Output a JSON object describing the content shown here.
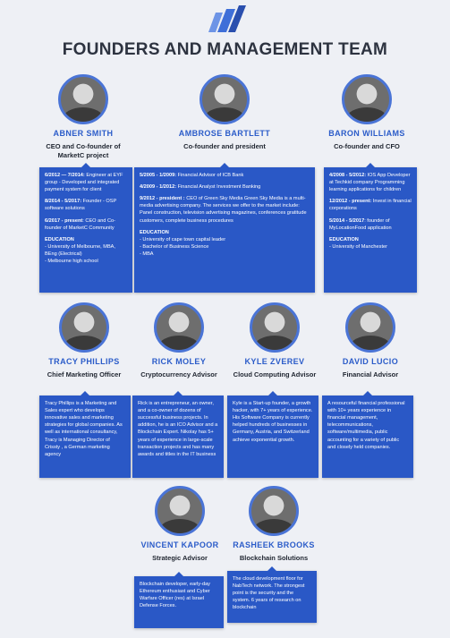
{
  "header": {
    "title": "FOUNDERS AND MANAGEMENT TEAM"
  },
  "founders": [
    {
      "name": "ABNER SMITH",
      "role": "CEO and Co-founder of MarketC project",
      "entries": [
        {
          "period": "6/2012 — 7/2014:",
          "text": " Engineer at EYF group - Developed and integrated payment system for client"
        },
        {
          "period": "8/2014 - 5/2017:",
          "text": " Founder - OSP software solutions"
        },
        {
          "period": "6/2017 - present",
          "text": ": CEO and Co-founder of MarketC Community"
        }
      ],
      "education_title": "EDUCATION",
      "education": [
        "- University of Melbourne, MBA, BEng (Electrical)",
        "- Melbourne high school"
      ]
    },
    {
      "name": "AMBROSE BARTLETT",
      "role": "Co-founder and president",
      "entries": [
        {
          "period": "5/2005 - 1/2009:",
          "text": " Financial Advisor of ICB Bank"
        },
        {
          "period": "4/2009 - 1/2012:",
          "text": " Financial Analyst Investment Banking"
        },
        {
          "period": "9/2012 - president :",
          "text": " CEO of Green Sky Media Green Sky Media is a multi-media advertising company. The services we offer to the market include: Panel construction, television advertising magazines, conferences gratitude customers, complete business procedures"
        }
      ],
      "education_title": "EDUCATION",
      "education": [
        "- University of cape town capital leader",
        "- Bachelor of Business Science",
        "- MBA"
      ]
    },
    {
      "name": "BARON WILLIAMS",
      "role": "Co-founder and CFO",
      "entries": [
        {
          "period": "4/2008 - 5/2012:",
          "text": " IOS App Developer at Techkid company Programming learning applications for children"
        },
        {
          "period": "12/2012 - present:",
          "text": " Invest in financial corporations"
        },
        {
          "period": "5/2014 - 5/2017",
          "text": ": founder of MyLocationFood application"
        }
      ],
      "education_title": "EDUCATION",
      "education": [
        "- University of Manchester"
      ]
    }
  ],
  "advisors": [
    {
      "name": "TRACY PHILLIPS",
      "role": "Chief Marketing Officer",
      "bio": "Tracy Phillips  is a Marketing and Sales  expert who develops innovative sales and  marketing strategies for global companies. As well as international consultancy, Tracy  is Managing Director of Crissty , a German marketing agency"
    },
    {
      "name": "RICK MOLEY",
      "role": "Cryptocurrency Advisor",
      "bio": "Rick is an entrepreneur, an owner, and a co-owner of dozens of successful business projects. In addition, he is an ICO Advisor and a Blockchain Expert. Nikolay has 5+ years of experience in large-scale transaction projects and has many awards and titles in the IT business"
    },
    {
      "name": "KYLE ZVEREV",
      "role": "Cloud Computing Advisor",
      "bio": "Kyle is a Start-up founder, a growth hacker, with 7+ years of experience. His Software Company is currently helped hundreds of businesses in Germany, Austria, and Switzerland achieve exponential growth."
    },
    {
      "name": "DAVID LUCIO",
      "role": "Financial Advisor",
      "bio": "A resourceful financial professional with 10+ years experience in financial management, telecommunications, software/multimedia, public accounting for a variety of public and closely held companies."
    },
    {
      "name": "VINCENT KAPOOR",
      "role": "Strategic Advisor",
      "bio": "Blockchain developer, early-day Ethereum enthusiast and Cyber Warfare Officer (res) at Israel Defense Forces."
    },
    {
      "name": "RASHEEK BROOKS",
      "role": "Blockchain Solutions",
      "bio": "The cloud development floor for NabTech network. The strongest point is the security and the system. 6 years of research on blockchain"
    }
  ],
  "colors": {
    "accent": "#2b5cc9",
    "card": "#2a58c6",
    "background": "#eef0f5"
  }
}
